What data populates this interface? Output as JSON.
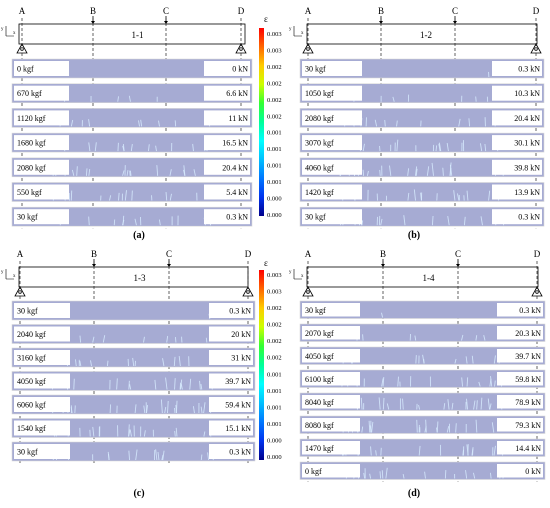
{
  "colorbar_top": {
    "symbol": "ε",
    "ticks": [
      "0.003",
      "0.003",
      "0.002",
      "0.002",
      "0.002",
      "0.002",
      "0.001",
      "0.001",
      "0.001",
      "0.001",
      "0.000",
      "0.000"
    ]
  },
  "colorbar_bottom": {
    "symbol": "ε",
    "ticks": [
      "0.003",
      "0.003",
      "0.002",
      "0.002",
      "0.002",
      "0.002",
      "0.001",
      "0.001",
      "0.001",
      "0.001",
      "0.000",
      "0.000"
    ]
  },
  "colors": {
    "specimen_fill": "#a6abd3",
    "specimen_border": "#d9d9d9",
    "crack": "#d8ecff",
    "colormap": [
      "#ff0000",
      "#ff6600",
      "#ffcc00",
      "#ccff00",
      "#33ff33",
      "#00ff99",
      "#00ffff",
      "#00bfff",
      "#0077ff",
      "#0033ee",
      "#00008b"
    ]
  },
  "panels": [
    {
      "label": "(a)",
      "beam": "1-1",
      "points": [
        "A",
        "B",
        "C",
        "D"
      ],
      "axis_y": "y",
      "axis_x": "x",
      "rows": [
        {
          "left": "0 kgf",
          "right": "0 kN",
          "cracks": 0.0
        },
        {
          "left": "670 kgf",
          "right": "6.6 kN",
          "cracks": 0.2
        },
        {
          "left": "1120 kgf",
          "right": "11 kN",
          "cracks": 0.35
        },
        {
          "left": "1680 kgf",
          "right": "16.5 kN",
          "cracks": 0.5
        },
        {
          "left": "2080 kgf",
          "right": "20.4 kN",
          "cracks": 0.65
        },
        {
          "left": "550 kgf",
          "right": "5.4 kN",
          "cracks": 0.55
        },
        {
          "left": "30 kgf",
          "right": "0.3 kN",
          "cracks": 0.5
        }
      ]
    },
    {
      "label": "(b)",
      "beam": "1-2",
      "points": [
        "A",
        "B",
        "C",
        "D"
      ],
      "axis_y": "y",
      "axis_x": "x",
      "rows": [
        {
          "left": "30 kgf",
          "right": "0.3 kN",
          "cracks": 0.05
        },
        {
          "left": "1050 kgf",
          "right": "10.3 kN",
          "cracks": 0.25
        },
        {
          "left": "2080 kgf",
          "right": "20.4 kN",
          "cracks": 0.45
        },
        {
          "left": "3070 kgf",
          "right": "30.1 kN",
          "cracks": 0.65
        },
        {
          "left": "4060 kgf",
          "right": "39.8 kN",
          "cracks": 0.85
        },
        {
          "left": "1420 kgf",
          "right": "13.9 kN",
          "cracks": 0.7
        },
        {
          "left": "30 kgf",
          "right": "0.3 kN",
          "cracks": 0.6
        }
      ]
    },
    {
      "label": "(c)",
      "beam": "1-3",
      "points": [
        "A",
        "B",
        "C",
        "D"
      ],
      "axis_y": "y",
      "axis_x": "x",
      "rows": [
        {
          "left": "30 kgf",
          "right": "0.3 kN",
          "cracks": 0.05
        },
        {
          "left": "2040 kgf",
          "right": "20 kN",
          "cracks": 0.3
        },
        {
          "left": "3160 kgf",
          "right": "31 kN",
          "cracks": 0.5
        },
        {
          "left": "4050 kgf",
          "right": "39.7 kN",
          "cracks": 0.7
        },
        {
          "left": "6060 kgf",
          "right": "59.4 kN",
          "cracks": 0.9
        },
        {
          "left": "1540 kgf",
          "right": "15.1 kN",
          "cracks": 0.75
        },
        {
          "left": "30 kgf",
          "right": "0.3 kN",
          "cracks": 0.6
        }
      ]
    },
    {
      "label": "(d)",
      "beam": "1-4",
      "points": [
        "A",
        "B",
        "C",
        "D"
      ],
      "axis_y": "y",
      "axis_x": "x",
      "rows": [
        {
          "left": "30 kgf",
          "right": "0.3 kN",
          "cracks": 0.05
        },
        {
          "left": "2070 kgf",
          "right": "20.3 kN",
          "cracks": 0.25
        },
        {
          "left": "4050 kgf",
          "right": "39.7 kN",
          "cracks": 0.45
        },
        {
          "left": "6100 kgf",
          "right": "59.8 kN",
          "cracks": 0.65
        },
        {
          "left": "8040 kgf",
          "right": "78.9 kN",
          "cracks": 0.85
        },
        {
          "left": "8080 kgf",
          "right": "79.3 kN",
          "cracks": 0.9
        },
        {
          "left": "1470 kgf",
          "right": "14.4 kN",
          "cracks": 0.75
        },
        {
          "left": "0 kgf",
          "right": "0 kN",
          "cracks": 0.7
        }
      ]
    }
  ]
}
